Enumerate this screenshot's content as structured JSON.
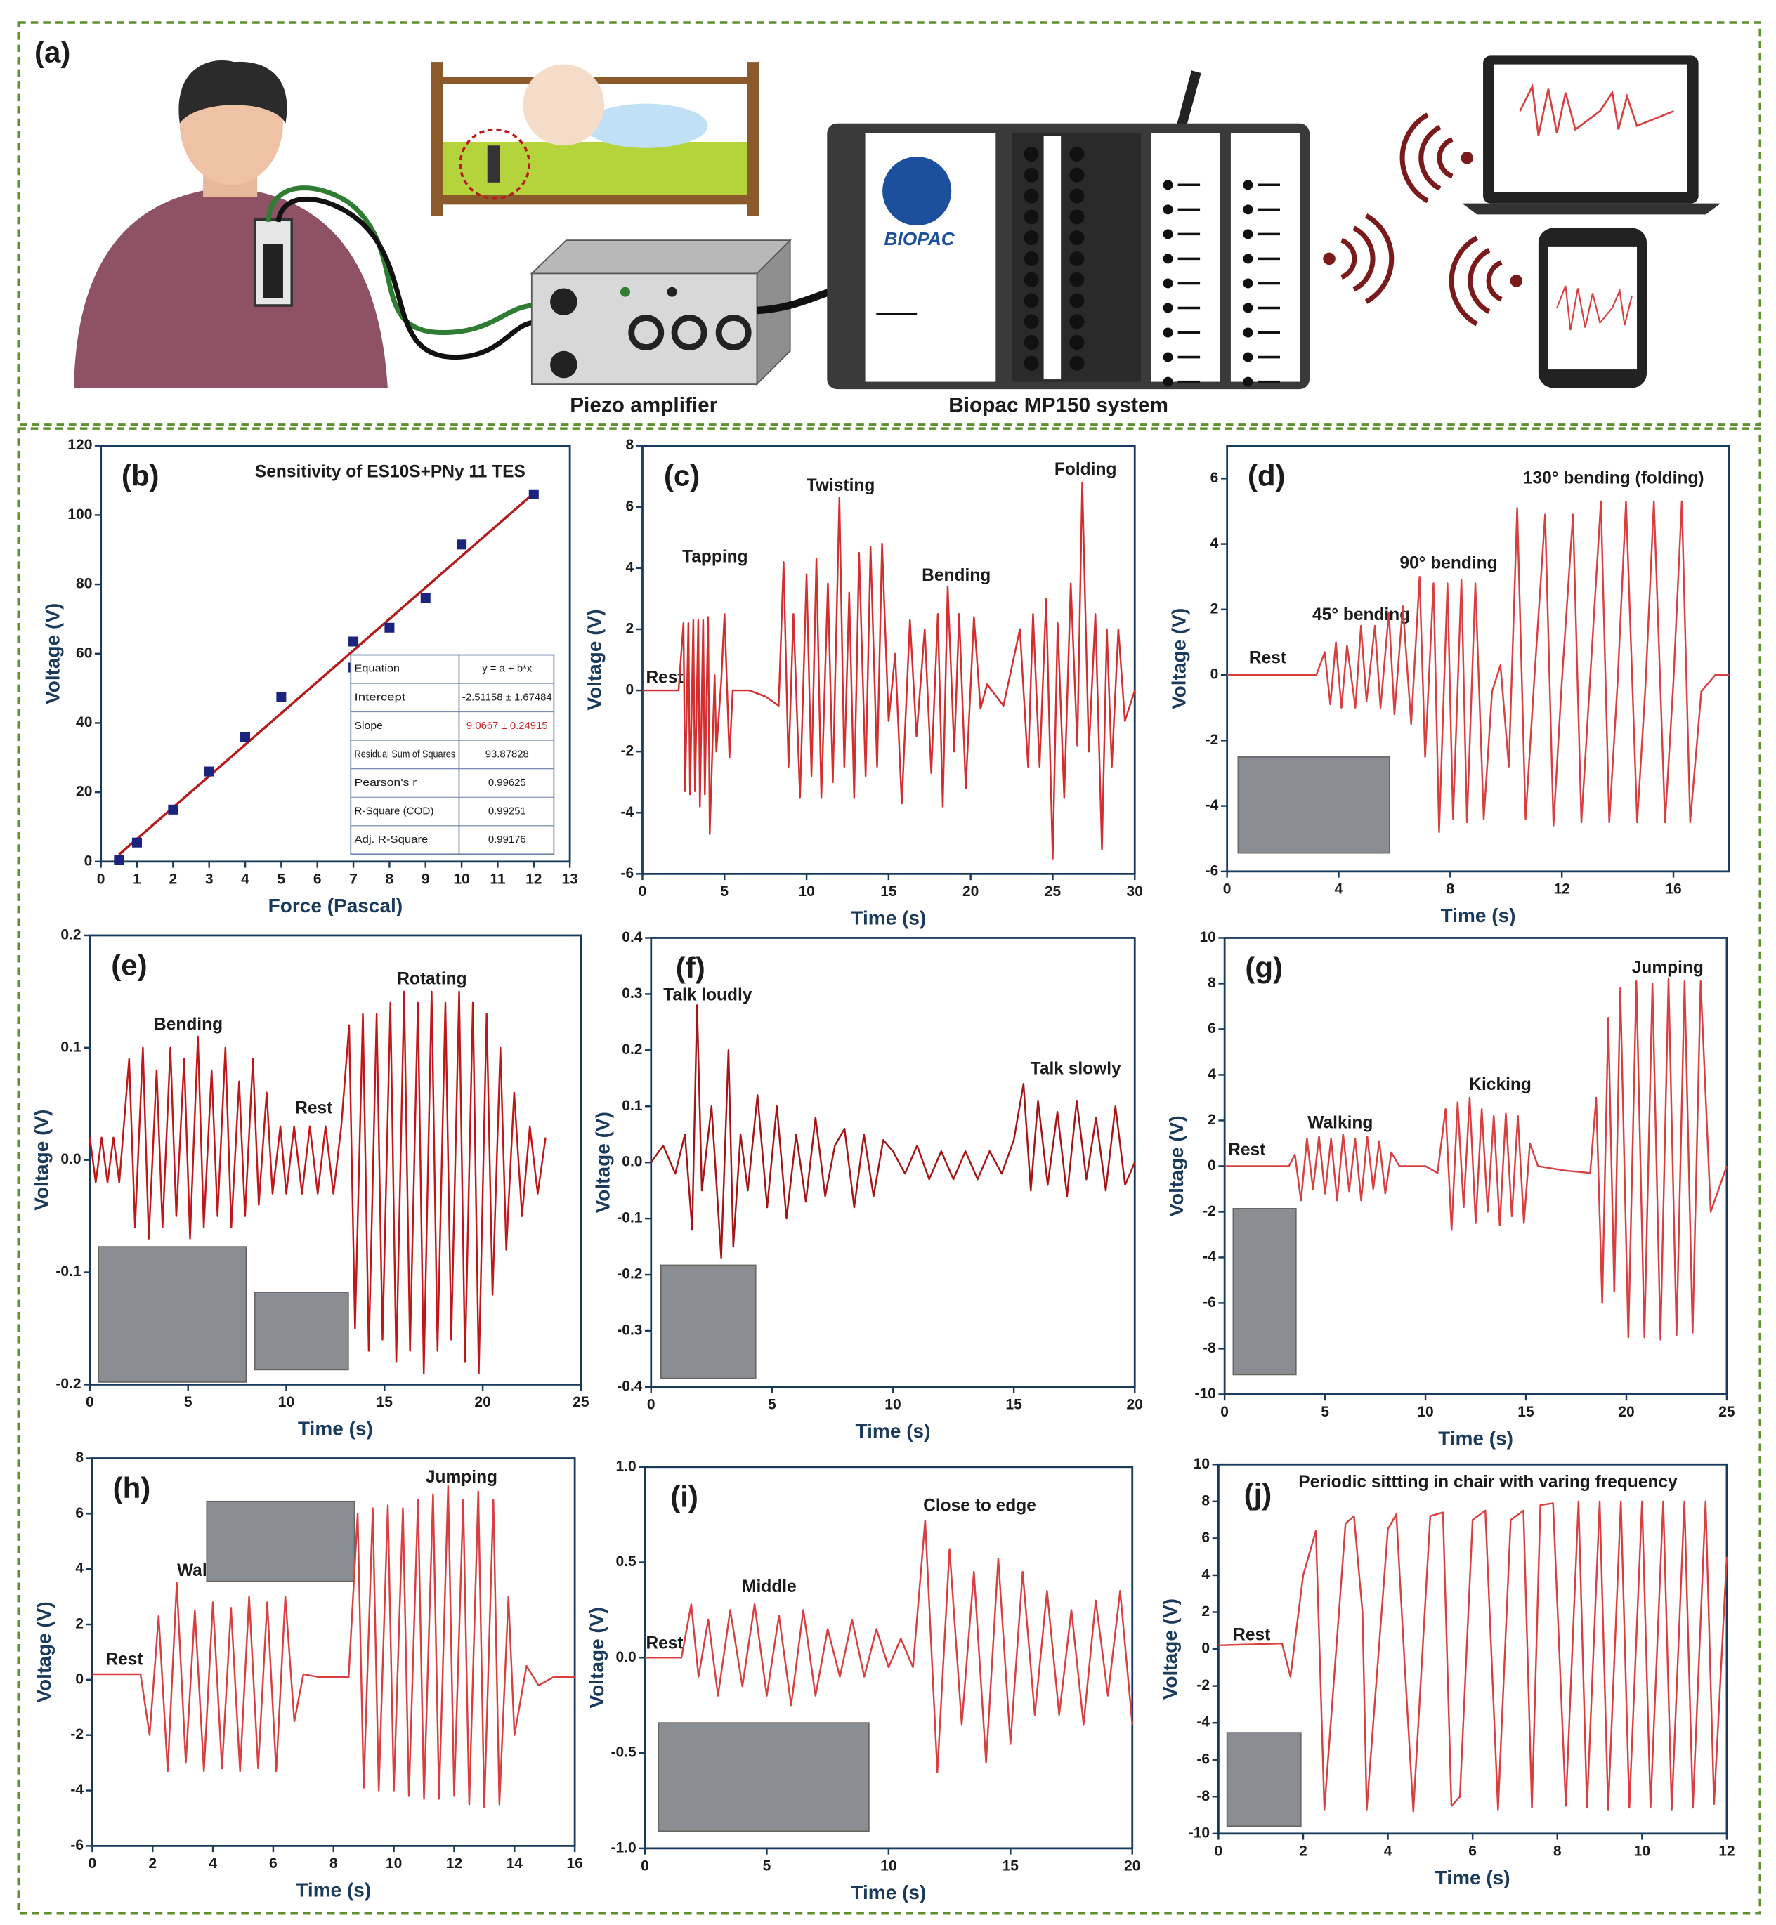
{
  "diagram": {
    "label": "(a)",
    "logo": "BIOPAC",
    "amplifier_label": "Piezo amplifier",
    "system_label": "Biopac MP150 system"
  },
  "chart_data": [
    {
      "type": "scatter",
      "label": "(b)",
      "title": "Sensitivity of ES10S+PNy 11 TES",
      "x_label": "Force (Pascal)",
      "y_label": "Voltage (V)",
      "color": "#1a237e",
      "x": [
        0.5,
        1,
        2,
        3,
        4,
        5,
        7,
        7,
        8,
        9,
        10,
        12
      ],
      "values": [
        0.5,
        5.5,
        15,
        26,
        36,
        47.5,
        63.5,
        56,
        67.5,
        76,
        91.5,
        106
      ],
      "fit": {
        "x": [
          0.5,
          12
        ],
        "values": [
          2.02,
          106.29
        ],
        "color": "#b71c1c"
      },
      "table": [
        [
          "Equation",
          "y = a + b*x"
        ],
        [
          "Intercept",
          "-2.51158 ± 1.67484"
        ],
        [
          "Slope",
          "9.0667 ± 0.24915"
        ],
        [
          "Residual Sum of Squares",
          "93.87828"
        ],
        [
          "Pearson's r",
          "0.99625"
        ],
        [
          "R-Square (COD)",
          "0.99251"
        ],
        [
          "Adj. R-Square",
          "0.99176"
        ]
      ],
      "xlim": [
        0,
        13
      ],
      "xticks": [
        0,
        1,
        2,
        3,
        4,
        5,
        6,
        7,
        8,
        9,
        10,
        11,
        12,
        13
      ],
      "ylim": [
        0,
        120
      ],
      "yticks": [
        0,
        20,
        40,
        60,
        80,
        100,
        120
      ]
    },
    {
      "type": "line",
      "label": "(c)",
      "x_label": "Time (s)",
      "y_label": "Voltage (V)",
      "color": "#d32f2f",
      "annotations": [
        "Tapping",
        "Twisting",
        "Bending",
        "Folding",
        "Rest"
      ],
      "x": [
        0,
        2.2,
        2.5,
        2.6,
        2.8,
        2.9,
        3.1,
        3.2,
        3.4,
        3.5,
        3.7,
        3.8,
        4.0,
        4.1,
        4.4,
        4.5,
        4.8,
        5.0,
        5.3,
        5.5,
        6.5,
        7.5,
        8.3,
        8.6,
        8.9,
        9.2,
        9.6,
        10,
        10.3,
        10.6,
        10.9,
        11.3,
        11.6,
        12,
        12.3,
        12.6,
        12.9,
        13.2,
        13.6,
        13.9,
        14.3,
        14.6,
        15,
        15.4,
        15.8,
        16.3,
        16.7,
        17.2,
        17.6,
        18,
        18.3,
        18.6,
        19,
        19.3,
        19.7,
        20.2,
        20.6,
        21,
        22,
        23,
        23.5,
        23.8,
        24.2,
        24.6,
        25,
        25.3,
        25.7,
        26.1,
        26.5,
        26.8,
        27.2,
        27.6,
        28,
        28.3,
        28.6,
        29,
        29.4,
        30
      ],
      "values": [
        0,
        0,
        2.2,
        -3.3,
        2.2,
        -3.4,
        2.3,
        -3.3,
        2.3,
        -3.8,
        2.3,
        -3.4,
        2.4,
        -4.7,
        0.5,
        -2.0,
        0.3,
        2.5,
        -2.2,
        0,
        0,
        -0.2,
        -0.5,
        4.2,
        -2.5,
        2.5,
        -3.5,
        3.8,
        -2.8,
        4.3,
        -3.5,
        3.5,
        -3.0,
        6.3,
        -2.5,
        3.2,
        -3.5,
        4.5,
        -2.8,
        4.7,
        -2.5,
        4.8,
        -1.0,
        1.2,
        -3.7,
        2.3,
        -1.5,
        2.0,
        -2.7,
        2.5,
        -3.8,
        3.4,
        -2.0,
        2.5,
        -3.2,
        2.4,
        -0.6,
        0.2,
        -0.5,
        2.0,
        -2.5,
        2.5,
        -2.5,
        3.0,
        -5.5,
        2.2,
        -3.5,
        3.5,
        -1.8,
        6.8,
        -2.0,
        2.5,
        -5.2,
        2.0,
        -2.5,
        2.0,
        -1.0,
        0
      ],
      "xlim": [
        0,
        30
      ],
      "xticks": [
        0,
        5,
        10,
        15,
        20,
        25,
        30
      ],
      "ylim": [
        -6,
        8
      ],
      "yticks": [
        -6,
        -4,
        -2,
        0,
        2,
        4,
        6,
        8
      ]
    },
    {
      "type": "line",
      "label": "(d)",
      "x_label": "Time (s)",
      "y_label": "Voltage (V)",
      "color": "#d84040",
      "annotations": [
        "45° bending",
        "90° bending",
        "130° bending (folding)",
        "Rest"
      ],
      "x": [
        0,
        3.2,
        3.5,
        3.7,
        3.9,
        4.1,
        4.3,
        4.6,
        4.8,
        5.0,
        5.3,
        5.5,
        5.8,
        6.0,
        6.3,
        6.6,
        6.9,
        7.1,
        7.4,
        7.6,
        7.9,
        8.1,
        8.4,
        8.6,
        8.9,
        9.2,
        9.5,
        9.8,
        10.1,
        10.4,
        10.7,
        11.0,
        11.4,
        11.7,
        12.0,
        12.4,
        12.7,
        13.0,
        13.4,
        13.7,
        14.0,
        14.3,
        14.7,
        15.0,
        15.3,
        15.7,
        16.0,
        16.3,
        16.6,
        17.0,
        17.5,
        18
      ],
      "values": [
        0,
        0,
        0.7,
        -0.9,
        1.0,
        -1.0,
        0.9,
        -1.0,
        1.5,
        -0.8,
        1.5,
        -1.0,
        1.9,
        -1.2,
        2.1,
        -1.5,
        3.0,
        -2.5,
        2.8,
        -4.8,
        2.8,
        -4.4,
        2.9,
        -4.5,
        2.8,
        -4.4,
        -0.5,
        0.3,
        -2.8,
        5.1,
        -4.4,
        -0.3,
        4.9,
        -4.6,
        -0.2,
        4.9,
        -4.5,
        -0.3,
        5.3,
        -4.5,
        -0.2,
        5.3,
        -4.5,
        -0.3,
        5.3,
        -4.5,
        -0.2,
        5.3,
        -4.5,
        -0.5,
        0,
        0
      ],
      "xlim": [
        0,
        18
      ],
      "xticks": [
        0,
        4,
        8,
        12,
        16
      ],
      "ylim": [
        -6,
        7
      ],
      "yticks": [
        -6,
        -4,
        -2,
        0,
        2,
        4,
        6
      ]
    },
    {
      "type": "line",
      "label": "(e)",
      "x_label": "Time (s)",
      "y_label": "Voltage (V)",
      "color": "#c01818",
      "annotations": [
        "Bending",
        "Rotating",
        "Rest"
      ],
      "x": [
        0,
        0.3,
        0.6,
        0.9,
        1.2,
        1.5,
        2.0,
        2.3,
        2.7,
        3.0,
        3.4,
        3.7,
        4.1,
        4.4,
        4.8,
        5.1,
        5.5,
        5.8,
        6.2,
        6.5,
        6.9,
        7.2,
        7.6,
        7.9,
        8.3,
        8.6,
        9.0,
        9.3,
        9.7,
        10.0,
        10.4,
        10.8,
        11.2,
        11.6,
        12.0,
        12.4,
        12.8,
        13.2,
        13.5,
        13.9,
        14.2,
        14.6,
        14.9,
        15.3,
        15.6,
        16.0,
        16.3,
        16.7,
        17.0,
        17.4,
        17.7,
        18.1,
        18.4,
        18.8,
        19.1,
        19.5,
        19.8,
        20.2,
        20.5,
        20.9,
        21.2,
        21.6,
        22.0,
        22.4,
        22.8,
        23.2
      ],
      "values": [
        0.02,
        -0.02,
        0.02,
        -0.02,
        0.02,
        -0.02,
        0.09,
        -0.06,
        0.1,
        -0.07,
        0.08,
        -0.06,
        0.1,
        -0.05,
        0.09,
        -0.07,
        0.11,
        -0.06,
        0.08,
        -0.05,
        0.1,
        -0.06,
        0.07,
        -0.05,
        0.09,
        -0.04,
        0.06,
        -0.03,
        0.03,
        -0.03,
        0.03,
        -0.03,
        0.03,
        -0.03,
        0.03,
        -0.03,
        0.03,
        0.12,
        -0.15,
        0.13,
        -0.17,
        0.13,
        -0.16,
        0.14,
        -0.18,
        0.15,
        -0.17,
        0.14,
        -0.19,
        0.15,
        -0.17,
        0.14,
        -0.16,
        0.15,
        -0.18,
        0.14,
        -0.19,
        0.13,
        -0.12,
        0.1,
        -0.08,
        0.06,
        -0.05,
        0.03,
        -0.03,
        0.02
      ],
      "xlim": [
        0,
        25
      ],
      "xticks": [
        0,
        5,
        10,
        15,
        20,
        25
      ],
      "ylim": [
        -0.2,
        0.2
      ],
      "yticks": [
        -0.2,
        -0.1,
        {
          "value": 0,
          "label": "0.0"
        },
        0.1,
        0.2
      ]
    },
    {
      "type": "line",
      "label": "(f)",
      "x_label": "Time (s)",
      "y_label": "Voltage (V)",
      "color": "#a51515",
      "annotations": [
        "Talk loudly",
        "Talk slowly"
      ],
      "x": [
        0,
        0.5,
        1.0,
        1.4,
        1.7,
        1.9,
        2.1,
        2.5,
        2.9,
        3.2,
        3.4,
        3.7,
        4.0,
        4.4,
        4.8,
        5.2,
        5.6,
        6.0,
        6.4,
        6.8,
        7.2,
        7.6,
        8.0,
        8.4,
        8.8,
        9.2,
        9.6,
        10.0,
        10.5,
        11.0,
        11.5,
        12.0,
        12.5,
        13.0,
        13.5,
        14.0,
        14.5,
        15.0,
        15.4,
        15.7,
        16.0,
        16.4,
        16.8,
        17.2,
        17.6,
        18.0,
        18.4,
        18.8,
        19.2,
        19.6,
        20
      ],
      "values": [
        0,
        0.03,
        -0.02,
        0.05,
        -0.12,
        0.28,
        -0.05,
        0.1,
        -0.17,
        0.2,
        -0.15,
        0.05,
        -0.05,
        0.12,
        -0.08,
        0.1,
        -0.1,
        0.05,
        -0.07,
        0.08,
        -0.06,
        0.03,
        0.06,
        -0.08,
        0.05,
        -0.06,
        0.04,
        0.02,
        -0.02,
        0.03,
        -0.03,
        0.02,
        -0.03,
        0.02,
        -0.03,
        0.02,
        -0.02,
        0.04,
        0.14,
        -0.05,
        0.11,
        -0.04,
        0.09,
        -0.06,
        0.11,
        -0.03,
        0.08,
        -0.05,
        0.1,
        -0.04,
        0
      ],
      "xlim": [
        0,
        20
      ],
      "xticks": [
        0,
        5,
        10,
        15,
        20
      ],
      "ylim": [
        -0.4,
        0.4
      ],
      "yticks": [
        -0.4,
        -0.3,
        -0.2,
        -0.1,
        {
          "value": 0,
          "label": "0.0"
        },
        0.1,
        0.2,
        0.3,
        0.4
      ]
    },
    {
      "type": "line",
      "label": "(g)",
      "x_label": "Time (s)",
      "y_label": "Voltage (V)",
      "color": "#d84040",
      "annotations": [
        "Rest",
        "Walking",
        "Kicking",
        "Jumping"
      ],
      "x": [
        0,
        3.2,
        3.5,
        3.8,
        4.1,
        4.4,
        4.7,
        5.0,
        5.3,
        5.6,
        5.9,
        6.2,
        6.5,
        6.8,
        7.1,
        7.4,
        7.7,
        8.0,
        8.3,
        8.7,
        10,
        10.6,
        11,
        11.3,
        11.6,
        11.9,
        12.2,
        12.5,
        12.8,
        13.1,
        13.4,
        13.7,
        14.0,
        14.3,
        14.6,
        14.9,
        15.2,
        15.6,
        17,
        18.2,
        18.5,
        18.8,
        19.1,
        19.4,
        19.7,
        20.1,
        20.5,
        20.9,
        21.3,
        21.7,
        22.1,
        22.5,
        22.9,
        23.3,
        23.7,
        24.2,
        25
      ],
      "values": [
        0,
        0,
        0.5,
        -1.5,
        1.2,
        -1.0,
        1.3,
        -1.2,
        1.2,
        -1.5,
        1.4,
        -1.1,
        1.2,
        -1.5,
        1.3,
        -1.0,
        1.1,
        -1.2,
        0.6,
        0,
        0,
        -0.3,
        2.5,
        -2.8,
        2.8,
        -1.8,
        3.0,
        -2.5,
        2.5,
        -2.0,
        2.2,
        -2.6,
        2.3,
        -2.2,
        2.2,
        -2.5,
        1.0,
        0,
        -0.2,
        -0.3,
        3.0,
        -6.0,
        6.5,
        -5.5,
        7.8,
        -7.5,
        8.1,
        -7.5,
        8.0,
        -7.6,
        8.2,
        -7.4,
        8.1,
        -7.3,
        8.1,
        -2.0,
        0
      ],
      "xlim": [
        0,
        25
      ],
      "xticks": [
        0,
        5,
        10,
        15,
        20,
        25
      ],
      "ylim": [
        -10,
        10
      ],
      "yticks": [
        -10,
        -8,
        -6,
        -4,
        -2,
        0,
        2,
        4,
        6,
        8,
        10
      ]
    },
    {
      "type": "line",
      "label": "(h)",
      "x_label": "Time (s)",
      "y_label": "Voltage (V)",
      "color": "#d84040",
      "annotations": [
        "Rest",
        "Wal",
        "Jumping"
      ],
      "x": [
        0,
        1.6,
        1.9,
        2.2,
        2.5,
        2.8,
        3.1,
        3.4,
        3.7,
        4.0,
        4.3,
        4.6,
        4.9,
        5.2,
        5.5,
        5.8,
        6.1,
        6.4,
        6.7,
        7.0,
        7.5,
        8.5,
        8.8,
        9.0,
        9.3,
        9.5,
        9.8,
        10.0,
        10.3,
        10.5,
        10.8,
        11.0,
        11.3,
        11.5,
        11.8,
        12.0,
        12.3,
        12.5,
        12.8,
        13.0,
        13.3,
        13.5,
        13.8,
        14.0,
        14.4,
        14.8,
        15.3,
        16
      ],
      "values": [
        0.2,
        0.2,
        -2.0,
        2.3,
        -3.3,
        3.5,
        -3.0,
        2.5,
        -3.3,
        2.8,
        -3.2,
        2.6,
        -3.3,
        3.0,
        -3.2,
        2.8,
        -3.3,
        3.0,
        -1.5,
        0.2,
        0.1,
        0.1,
        6.0,
        -3.9,
        6.2,
        -4.0,
        6.3,
        -4.0,
        6.2,
        -4.2,
        6.5,
        -4.3,
        6.7,
        -4.3,
        7.0,
        -4.2,
        6.5,
        -4.5,
        6.8,
        -4.6,
        6.5,
        -4.5,
        3.0,
        -2.0,
        0.5,
        -0.2,
        0.1,
        0.1
      ],
      "xlim": [
        0,
        16
      ],
      "xticks": [
        0,
        2,
        4,
        6,
        8,
        10,
        12,
        14,
        16
      ],
      "ylim": [
        -6,
        8
      ],
      "yticks": [
        -6,
        -4,
        -2,
        0,
        2,
        4,
        6,
        8
      ]
    },
    {
      "type": "line",
      "label": "(i)",
      "x_label": "Time (s)",
      "y_label": "Voltage (V)",
      "color": "#d84040",
      "annotations": [
        "Rest",
        "Middle",
        "Close to edge"
      ],
      "x": [
        0,
        1.5,
        1.9,
        2.2,
        2.6,
        3.0,
        3.5,
        4.0,
        4.5,
        5.0,
        5.5,
        6.0,
        6.5,
        7.0,
        7.5,
        8.0,
        8.5,
        9.0,
        9.5,
        10.0,
        10.5,
        11.0,
        11.5,
        12.0,
        12.5,
        13.0,
        13.5,
        14.0,
        14.5,
        15.0,
        15.5,
        16.0,
        16.5,
        17.0,
        17.5,
        18.0,
        18.5,
        19.0,
        19.5,
        20
      ],
      "values": [
        0,
        0,
        0.28,
        -0.1,
        0.2,
        -0.2,
        0.25,
        -0.15,
        0.28,
        -0.2,
        0.22,
        -0.25,
        0.25,
        -0.2,
        0.15,
        -0.1,
        0.2,
        -0.1,
        0.15,
        -0.05,
        0.1,
        -0.05,
        0.72,
        -0.6,
        0.57,
        -0.35,
        0.45,
        -0.55,
        0.52,
        -0.45,
        0.45,
        -0.3,
        0.35,
        -0.3,
        0.25,
        -0.35,
        0.3,
        -0.2,
        0.35,
        -0.35
      ],
      "xlim": [
        0,
        20
      ],
      "xticks": [
        0,
        5,
        10,
        15,
        20
      ],
      "ylim": [
        -1,
        1
      ],
      "yticks": [
        {
          "value": -1,
          "label": "-1.0"
        },
        -0.5,
        {
          "value": 0,
          "label": "0.0"
        },
        0.5,
        {
          "value": 1,
          "label": "1.0"
        }
      ]
    },
    {
      "type": "line",
      "label": "(j)",
      "x_label": "Time (s)",
      "y_label": "Voltage (V)",
      "color": "#d84040",
      "annotations": [
        "Periodic sittting in chair with varing frequency",
        "Rest"
      ],
      "x": [
        0,
        1.5,
        1.7,
        2.0,
        2.3,
        2.4,
        2.5,
        3.0,
        3.2,
        3.4,
        3.5,
        4.0,
        4.2,
        4.4,
        4.6,
        5.0,
        5.3,
        5.5,
        5.7,
        6.0,
        6.3,
        6.6,
        6.9,
        7.2,
        7.4,
        7.6,
        7.9,
        8.2,
        8.5,
        8.7,
        9.0,
        9.2,
        9.5,
        9.7,
        10.0,
        10.2,
        10.5,
        10.7,
        11.0,
        11.2,
        11.5,
        11.7,
        12
      ],
      "values": [
        0.2,
        0.3,
        -1.5,
        4.0,
        6.4,
        -1.0,
        -8.7,
        6.8,
        7.2,
        2.0,
        -8.7,
        6.5,
        7.3,
        -1.0,
        -8.8,
        7.2,
        7.4,
        -8.5,
        -8.0,
        7.0,
        7.5,
        -8.7,
        7.0,
        7.5,
        -8.6,
        7.8,
        7.9,
        -8.5,
        8.0,
        -8.6,
        8.0,
        -8.7,
        8.0,
        -8.6,
        8.0,
        -8.6,
        8.0,
        -8.7,
        8.0,
        -8.6,
        8.0,
        -8.4,
        5.0
      ],
      "xlim": [
        0,
        12
      ],
      "xticks": [
        0,
        2,
        4,
        6,
        8,
        10,
        12
      ],
      "ylim": [
        -10,
        10
      ],
      "yticks": [
        -10,
        -8,
        -6,
        -4,
        -2,
        0,
        2,
        4,
        6,
        8,
        10
      ]
    }
  ]
}
